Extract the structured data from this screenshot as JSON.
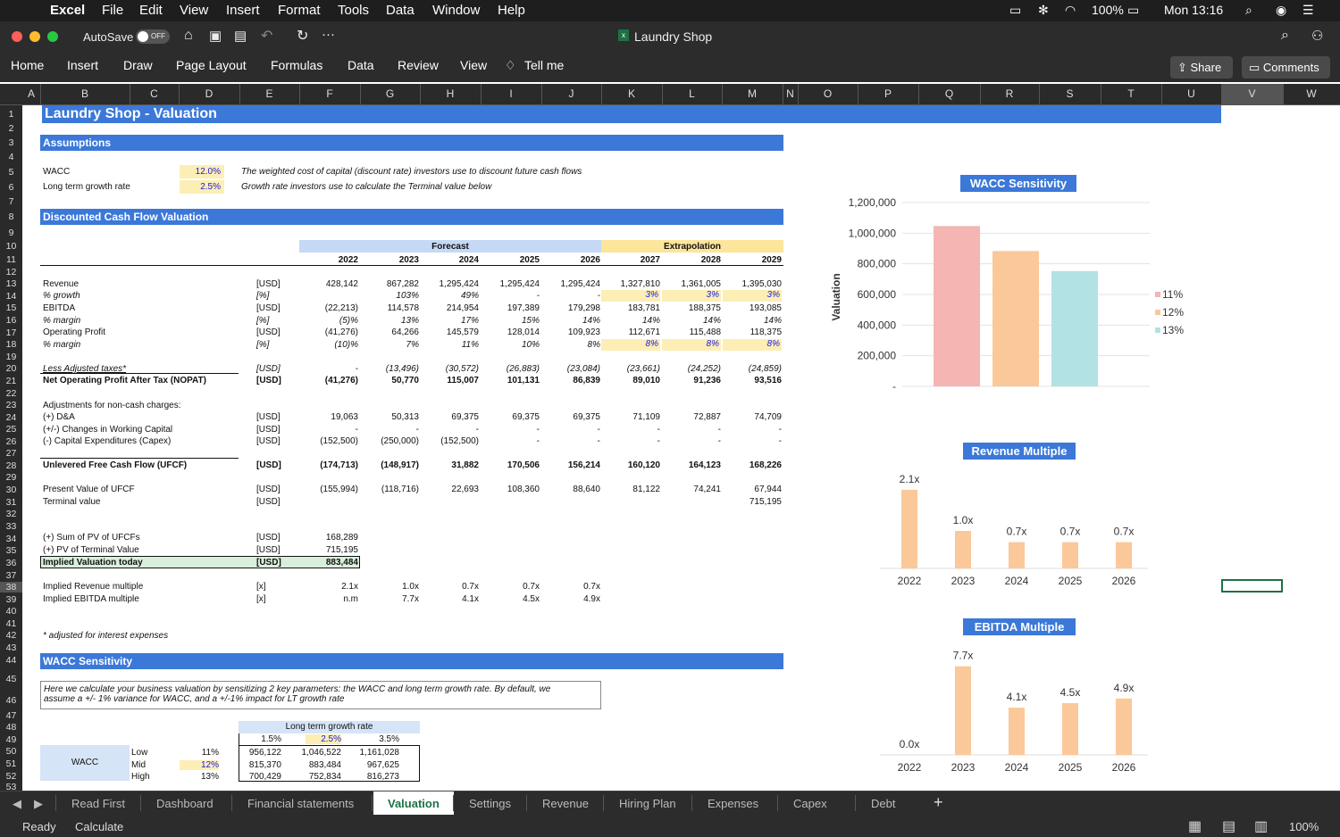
{
  "menubar": {
    "app": "Excel",
    "items": [
      "File",
      "Edit",
      "View",
      "Insert",
      "Format",
      "Tools",
      "Data",
      "Window",
      "Help"
    ],
    "battery": "100%",
    "clock": "Mon 13:16"
  },
  "titlebar": {
    "autosave": "AutoSave",
    "autosave_state": "OFF",
    "doc_title": "Laundry Shop"
  },
  "ribbon": {
    "tabs": [
      "Home",
      "Insert",
      "Draw",
      "Page Layout",
      "Formulas",
      "Data",
      "Review",
      "View"
    ],
    "tell_me": "Tell me",
    "share": "Share",
    "comments": "Comments"
  },
  "columns": [
    "A",
    "B",
    "C",
    "D",
    "E",
    "F",
    "G",
    "H",
    "I",
    "J",
    "K",
    "L",
    "M",
    "N",
    "O",
    "P",
    "Q",
    "R",
    "S",
    "T",
    "U",
    "V",
    "W"
  ],
  "rows": [
    "1",
    "2",
    "3",
    "4",
    "5",
    "6",
    "7",
    "8",
    "9",
    "10",
    "11",
    "12",
    "13",
    "14",
    "15",
    "16",
    "17",
    "18",
    "19",
    "20",
    "21",
    "22",
    "23",
    "24",
    "25",
    "26",
    "27",
    "28",
    "29",
    "30",
    "31",
    "32",
    "33",
    "34",
    "35",
    "36",
    "37",
    "38",
    "39",
    "40",
    "41",
    "42",
    "43",
    "44",
    "45",
    "46",
    "47",
    "48",
    "49",
    "50",
    "51",
    "52",
    "53"
  ],
  "sheet": {
    "title": "Laundry Shop - Valuation",
    "assumptions": "Assumptions",
    "wacc_label": "WACC",
    "wacc_value": "12.0%",
    "wacc_note": "The weighted cost of capital (discount rate) investors use to discount future cash flows",
    "ltg_label": "Long term growth rate",
    "ltg_value": "2.5%",
    "ltg_note": "Growth rate investors use to calculate the Terminal value below",
    "dcf": "Discounted Cash Flow Valuation",
    "forecast": "Forecast",
    "extrapolation": "Extrapolation",
    "years": [
      "2022",
      "2023",
      "2024",
      "2025",
      "2026",
      "2027",
      "2028",
      "2029"
    ],
    "lines": [
      {
        "label": "Revenue",
        "unit": "[USD]",
        "vals": [
          "428,142",
          "867,282",
          "1,295,424",
          "1,295,424",
          "1,295,424",
          "1,327,810",
          "1,361,005",
          "1,395,030"
        ]
      },
      {
        "label": "% growth",
        "unit": "[%]",
        "vals": [
          "",
          "103%",
          "49%",
          "-",
          "-",
          "3%",
          "3%",
          "3%"
        ]
      },
      {
        "label": "EBITDA",
        "unit": "[USD]",
        "vals": [
          "(22,213)",
          "114,578",
          "214,954",
          "197,389",
          "179,298",
          "183,781",
          "188,375",
          "193,085"
        ]
      },
      {
        "label": "% margin",
        "unit": "[%]",
        "vals": [
          "(5)%",
          "13%",
          "17%",
          "15%",
          "14%",
          "14%",
          "14%",
          "14%"
        ]
      },
      {
        "label": "Operating Profit",
        "unit": "[USD]",
        "vals": [
          "(41,276)",
          "64,266",
          "145,579",
          "128,014",
          "109,923",
          "112,671",
          "115,488",
          "118,375"
        ]
      },
      {
        "label": "% margin",
        "unit": "[%]",
        "vals": [
          "(10)%",
          "7%",
          "11%",
          "10%",
          "8%",
          "8%",
          "8%",
          "8%"
        ]
      },
      {
        "label": "Less Adjusted taxes*",
        "unit": "[USD]",
        "vals": [
          "-",
          "(13,496)",
          "(30,572)",
          "(26,883)",
          "(23,084)",
          "(23,661)",
          "(24,252)",
          "(24,859)"
        ]
      },
      {
        "label": "Net Operating Profit After Tax (NOPAT)",
        "unit": "[USD]",
        "vals": [
          "(41,276)",
          "50,770",
          "115,007",
          "101,131",
          "86,839",
          "89,010",
          "91,236",
          "93,516"
        ]
      },
      {
        "label": "Adjustments for non-cash charges:",
        "unit": "",
        "vals": [
          "",
          "",
          "",
          "",
          "",
          "",
          "",
          ""
        ]
      },
      {
        "label": "(+) D&A",
        "unit": "[USD]",
        "vals": [
          "19,063",
          "50,313",
          "69,375",
          "69,375",
          "69,375",
          "71,109",
          "72,887",
          "74,709"
        ]
      },
      {
        "label": "(+/-) Changes in Working Capital",
        "unit": "[USD]",
        "vals": [
          "-",
          "-",
          "-",
          "-",
          "-",
          "-",
          "-",
          "-"
        ]
      },
      {
        "label": "(-) Capital Expenditures (Capex)",
        "unit": "[USD]",
        "vals": [
          "(152,500)",
          "(250,000)",
          "(152,500)",
          "-",
          "-",
          "-",
          "-",
          "-"
        ]
      },
      {
        "label": "Unlevered Free Cash Flow (UFCF)",
        "unit": "[USD]",
        "vals": [
          "(174,713)",
          "(148,917)",
          "31,882",
          "170,506",
          "156,214",
          "160,120",
          "164,123",
          "168,226"
        ]
      },
      {
        "label": "Present Value of UFCF",
        "unit": "[USD]",
        "vals": [
          "(155,994)",
          "(118,716)",
          "22,693",
          "108,360",
          "88,640",
          "81,122",
          "74,241",
          "67,944"
        ]
      },
      {
        "label": "Terminal value",
        "unit": "[USD]",
        "vals": [
          "",
          "",
          "",
          "",
          "",
          "",
          "",
          "715,195"
        ]
      },
      {
        "label": "(+) Sum of PV of UFCFs",
        "unit": "[USD]",
        "vals": [
          "168,289",
          "",
          "",
          "",
          "",
          "",
          "",
          ""
        ]
      },
      {
        "label": "(+) PV of Terminal Value",
        "unit": "[USD]",
        "vals": [
          "715,195",
          "",
          "",
          "",
          "",
          "",
          "",
          ""
        ]
      },
      {
        "label": "Implied Valuation today",
        "unit": "[USD]",
        "vals": [
          "883,484",
          "",
          "",
          "",
          "",
          "",
          "",
          ""
        ]
      },
      {
        "label": "Implied Revenue multiple",
        "unit": "[x]",
        "vals": [
          "2.1x",
          "1.0x",
          "0.7x",
          "0.7x",
          "0.7x",
          "",
          "",
          ""
        ]
      },
      {
        "label": "Implied EBITDA multiple",
        "unit": "[x]",
        "vals": [
          "n.m",
          "7.7x",
          "4.1x",
          "4.5x",
          "4.9x",
          "",
          "",
          ""
        ]
      }
    ],
    "footnote": "* adjusted for interest expenses",
    "wacc_sens": "WACC Sensitivity",
    "sens_note1": "Here we calculate your business valuation by sensitizing 2 key parameters: the WACC and long term growth rate. By default, we",
    "sens_note2": "assume a +/- 1% variance for WACC, and a +/-1% impact for LT growth rate",
    "ltg_header": "Long term growth rate",
    "ltg_cols": [
      "1.5%",
      "2.5%",
      "3.5%"
    ],
    "wacc_cell": "WACC",
    "sens_rows": [
      {
        "name": "Low",
        "rate": "11%",
        "vals": [
          "956,122",
          "1,046,522",
          "1,161,028"
        ]
      },
      {
        "name": "Mid",
        "rate": "12%",
        "vals": [
          "815,370",
          "883,484",
          "967,625"
        ]
      },
      {
        "name": "High",
        "rate": "13%",
        "vals": [
          "700,429",
          "752,834",
          "816,273"
        ]
      }
    ]
  },
  "charts": {
    "wacc": {
      "title": "WACC Sensitivity",
      "ylabel": "Valuation",
      "ticks": [
        "1,200,000",
        "1,000,000",
        "800,000",
        "600,000",
        "400,000",
        "200,000",
        "-"
      ],
      "legend": [
        "11%",
        "12%",
        "13%"
      ],
      "values": [
        1046522,
        883484,
        752834
      ],
      "colors": [
        "#f4b5b3",
        "#fbc89a",
        "#b3e2e4"
      ]
    },
    "rev": {
      "title": "Revenue Multiple",
      "categories": [
        "2022",
        "2023",
        "2024",
        "2025",
        "2026"
      ],
      "values": [
        2.1,
        1.0,
        0.7,
        0.7,
        0.7
      ],
      "labels": [
        "2.1x",
        "1.0x",
        "0.7x",
        "0.7x",
        "0.7x"
      ]
    },
    "ebitda": {
      "title": "EBITDA Multiple",
      "categories": [
        "2022",
        "2023",
        "2024",
        "2025",
        "2026"
      ],
      "values": [
        0,
        7.7,
        4.1,
        4.5,
        4.9
      ],
      "labels": [
        "0.0x",
        "7.7x",
        "4.1x",
        "4.5x",
        "4.9x"
      ]
    }
  },
  "sheet_tabs": [
    "Read First",
    "Dashboard",
    "Financial statements",
    "Valuation",
    "Settings",
    "Revenue",
    "Hiring Plan",
    "Expenses",
    "Capex",
    "Debt"
  ],
  "active_tab": "Valuation",
  "status": {
    "ready": "Ready",
    "calc": "Calculate",
    "zoom": "100%"
  }
}
